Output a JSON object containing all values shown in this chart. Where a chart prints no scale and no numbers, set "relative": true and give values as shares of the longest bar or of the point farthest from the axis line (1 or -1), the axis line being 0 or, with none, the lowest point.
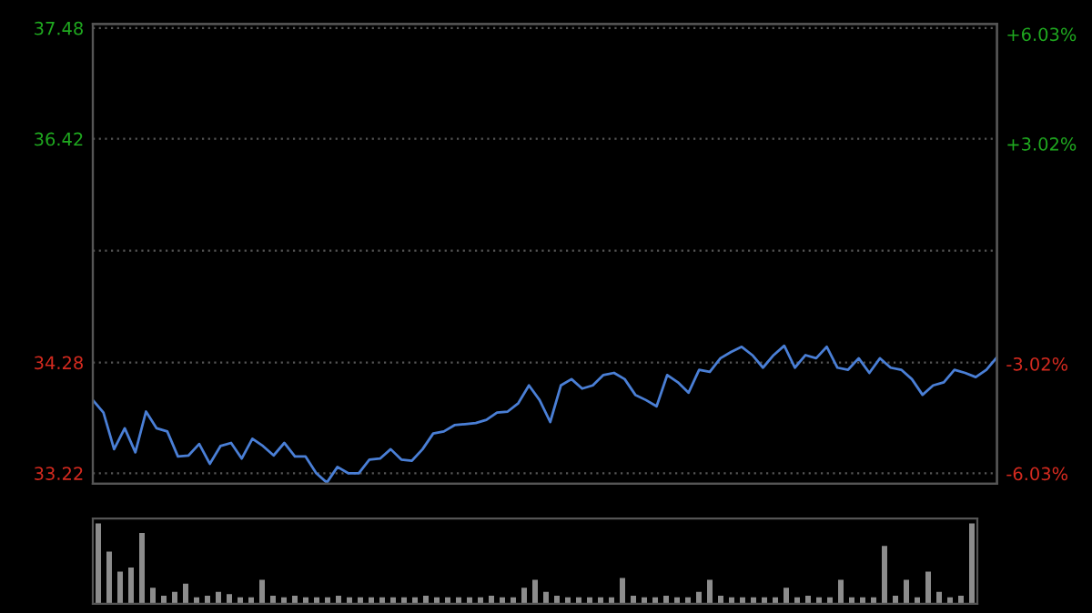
{
  "chart_data": [
    {
      "type": "line",
      "categories": [
        null,
        null,
        null,
        null,
        null,
        null,
        null,
        null,
        null,
        null,
        null,
        null,
        null,
        null,
        null,
        null,
        null,
        null,
        null,
        null,
        null,
        null,
        null,
        null,
        null,
        null,
        null,
        null,
        null,
        null,
        null,
        null,
        null,
        null,
        null,
        null,
        null,
        null,
        null,
        null,
        null,
        null,
        null,
        null,
        null,
        null,
        null,
        null,
        null,
        null,
        null,
        null,
        null,
        null,
        null,
        null,
        null,
        null,
        null,
        null,
        null,
        null,
        null,
        null,
        null,
        null,
        null,
        null,
        null,
        null,
        null,
        null,
        null,
        null,
        null,
        null,
        null,
        null,
        null,
        null,
        null,
        null,
        null,
        null,
        null,
        null
      ],
      "series": [
        {
          "color": "#4a7fd6",
          "values": [
            33.92,
            33.8,
            33.45,
            33.65,
            33.42,
            33.81,
            33.65,
            33.62,
            33.38,
            33.39,
            33.5,
            33.31,
            33.48,
            33.51,
            33.36,
            33.55,
            33.48,
            33.39,
            33.51,
            33.38,
            33.38,
            33.22,
            33.13,
            33.28,
            33.22,
            33.22,
            33.35,
            33.36,
            33.45,
            33.35,
            33.34,
            33.45,
            33.6,
            33.62,
            33.68,
            33.69,
            33.7,
            33.73,
            33.8,
            33.81,
            33.89,
            34.06,
            33.92,
            33.71,
            34.06,
            34.12,
            34.03,
            34.06,
            34.16,
            34.18,
            34.12,
            33.97,
            33.92,
            33.86,
            34.16,
            34.09,
            33.99,
            34.21,
            34.19,
            34.32,
            34.38,
            34.43,
            34.35,
            34.23,
            34.35,
            34.44,
            34.23,
            34.35,
            34.32,
            34.43,
            34.23,
            34.21,
            34.32,
            34.18,
            34.32,
            34.23,
            34.21,
            34.12,
            33.97,
            34.06,
            34.09,
            34.21,
            34.18,
            34.14,
            34.21,
            34.33
          ]
        }
      ],
      "ylim": [
        33.12,
        37.52
      ],
      "yticks": [
        33.22,
        34.28,
        {
          "value": 35.35,
          "label": null
        },
        36.42,
        37.48
      ],
      "y2lim": [
        -6.31,
        6.31
      ],
      "y2ticks": [
        {
          "value": -6.03,
          "label": "-6.03%"
        },
        {
          "value": -3.02,
          "label": "-3.02%"
        },
        {
          "value": 3.02,
          "label": "+3.02%"
        },
        {
          "value": 6.03,
          "label": "+6.03%"
        }
      ],
      "grid": "y",
      "line_style": "solid",
      "marker": "none"
    },
    {
      "type": "bar",
      "relative": true,
      "categories": [
        null,
        null,
        null,
        null,
        null,
        null,
        null,
        null,
        null,
        null,
        null,
        null,
        null,
        null,
        null,
        null,
        null,
        null,
        null,
        null,
        null,
        null,
        null,
        null,
        null,
        null,
        null,
        null,
        null,
        null,
        null,
        null,
        null,
        null,
        null,
        null,
        null,
        null,
        null,
        null,
        null,
        null,
        null,
        null,
        null,
        null,
        null,
        null,
        null,
        null,
        null,
        null,
        null,
        null,
        null,
        null,
        null,
        null,
        null,
        null,
        null,
        null,
        null,
        null,
        null,
        null,
        null,
        null,
        null,
        null,
        null,
        null,
        null,
        null,
        null,
        null,
        null,
        null,
        null,
        null,
        null
      ],
      "series": [
        {
          "color": "#8c8c8c",
          "values": [
            1.0,
            0.65,
            0.4,
            0.45,
            0.88,
            0.2,
            0.1,
            0.15,
            0.25,
            0.08,
            0.1,
            0.15,
            0.12,
            0.08,
            0.08,
            0.3,
            0.1,
            0.08,
            0.1,
            0.08,
            0.08,
            0.08,
            0.1,
            0.08,
            0.08,
            0.08,
            0.08,
            0.08,
            0.08,
            0.08,
            0.1,
            0.08,
            0.08,
            0.08,
            0.08,
            0.08,
            0.1,
            0.08,
            0.08,
            0.2,
            0.3,
            0.15,
            0.1,
            0.08,
            0.08,
            0.08,
            0.08,
            0.08,
            0.32,
            0.1,
            0.08,
            0.08,
            0.1,
            0.08,
            0.08,
            0.15,
            0.3,
            0.1,
            0.08,
            0.08,
            0.08,
            0.08,
            0.08,
            0.2,
            0.08,
            0.1,
            0.08,
            0.08,
            0.3,
            0.08,
            0.08,
            0.08,
            0.72,
            0.1,
            0.3,
            0.08,
            0.4,
            0.15,
            0.08,
            0.1,
            1.0
          ]
        }
      ]
    }
  ]
}
